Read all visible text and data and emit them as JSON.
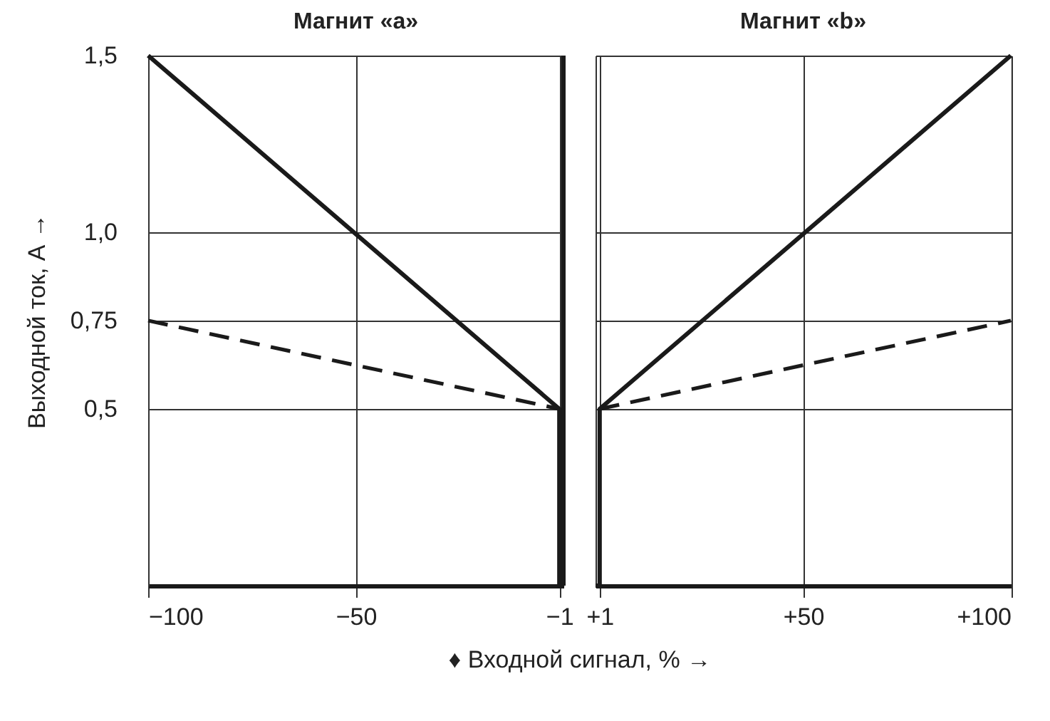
{
  "chart_data": [
    {
      "type": "line",
      "title": "Магнит «a»",
      "xlabel": "♦ Входной сигнал, % →",
      "ylabel": "Выходной ток, А →",
      "xlim": [
        -100,
        0
      ],
      "ylim": [
        0,
        1.5
      ],
      "xticks": [
        {
          "value": -100,
          "label": "−100"
        },
        {
          "value": -50,
          "label": "−50"
        },
        {
          "value": -1,
          "label": "−1"
        }
      ],
      "yticks": [
        {
          "value": 0.5,
          "label": "0,5"
        },
        {
          "value": 0.75,
          "label": "0,75"
        },
        {
          "value": 1.0,
          "label": "1,0"
        },
        {
          "value": 1.5,
          "label": "1,5"
        }
      ],
      "grid": true,
      "series": [
        {
          "color": "#1a1a1a",
          "line_style": "solid",
          "x": [
            -100,
            -1,
            -1,
            0
          ],
          "values": [
            1.5,
            0.5,
            0,
            0
          ]
        },
        {
          "color": "#1a1a1a",
          "line_style": "dashed",
          "x": [
            -100,
            -1
          ],
          "values": [
            0.75,
            0.5
          ]
        }
      ],
      "ref_lines": [
        {
          "axis": "x",
          "value": 0,
          "color": "#1a1a1a"
        }
      ]
    },
    {
      "type": "line",
      "title": "Магнит «b»",
      "tick_labels": "x",
      "xlim": [
        0,
        100
      ],
      "ylim": [
        0,
        1.5
      ],
      "xticks": [
        {
          "value": 1,
          "label": "+1"
        },
        {
          "value": 50,
          "label": "+50"
        },
        {
          "value": 100,
          "label": "+100"
        }
      ],
      "yticks": [
        {
          "value": 0.5,
          "label": null
        },
        {
          "value": 0.75,
          "label": null
        },
        {
          "value": 1.0,
          "label": null
        },
        {
          "value": 1.5,
          "label": null
        }
      ],
      "grid": true,
      "series": [
        {
          "color": "#1a1a1a",
          "line_style": "solid",
          "x": [
            0,
            1,
            1,
            100
          ],
          "values": [
            0,
            0,
            0.5,
            1.5
          ]
        },
        {
          "color": "#1a1a1a",
          "line_style": "dashed",
          "x": [
            1,
            100
          ],
          "values": [
            0.5,
            0.75
          ]
        }
      ]
    }
  ]
}
